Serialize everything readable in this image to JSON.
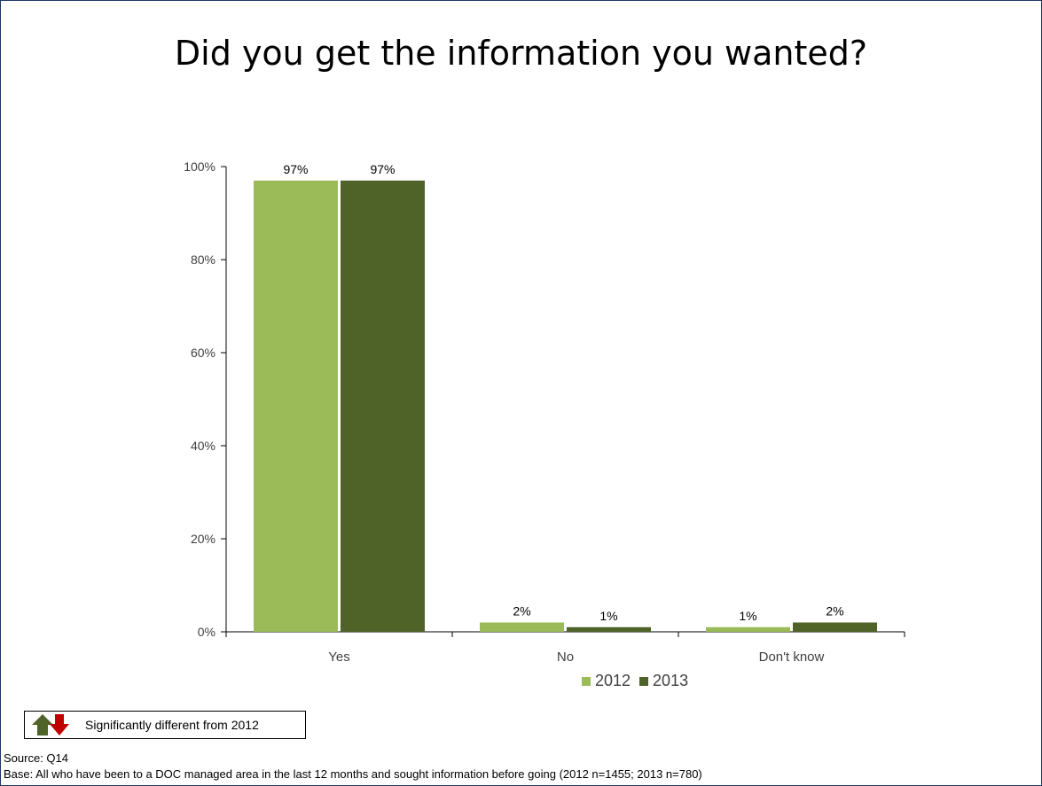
{
  "title": "Did you get the information you wanted?",
  "colors": {
    "series_2012": "#9bbb59",
    "series_2013": "#4f6228",
    "up_arrow": "#4f6228",
    "down_arrow": "#c00000"
  },
  "chart_data": {
    "type": "bar",
    "title": "Did you get the information you wanted?",
    "categories": [
      "Yes",
      "No",
      "Don't know"
    ],
    "series": [
      {
        "name": "2012",
        "values": [
          97,
          2,
          1
        ],
        "labels": [
          "97%",
          "2%",
          "1%"
        ]
      },
      {
        "name": "2013",
        "values": [
          97,
          1,
          2
        ],
        "labels": [
          "97%",
          "1%",
          "2%"
        ]
      }
    ],
    "ylim": [
      0,
      100
    ],
    "yticks": [
      0,
      20,
      40,
      60,
      80,
      100
    ],
    "ytick_labels": [
      "0%",
      "20%",
      "40%",
      "60%",
      "80%",
      "100%"
    ],
    "xlabel": "",
    "ylabel": "",
    "grid": false,
    "legend_position": "bottom"
  },
  "legend_note": {
    "text": "Significantly different from 2012",
    "icons": [
      "up-arrow-icon",
      "down-arrow-icon"
    ]
  },
  "footnotes": {
    "source": "Source: Q14",
    "base": "Base: All who have been to a DOC managed area in the last 12 months and sought information before going (2012  n=1455; 2013 n=780)"
  }
}
